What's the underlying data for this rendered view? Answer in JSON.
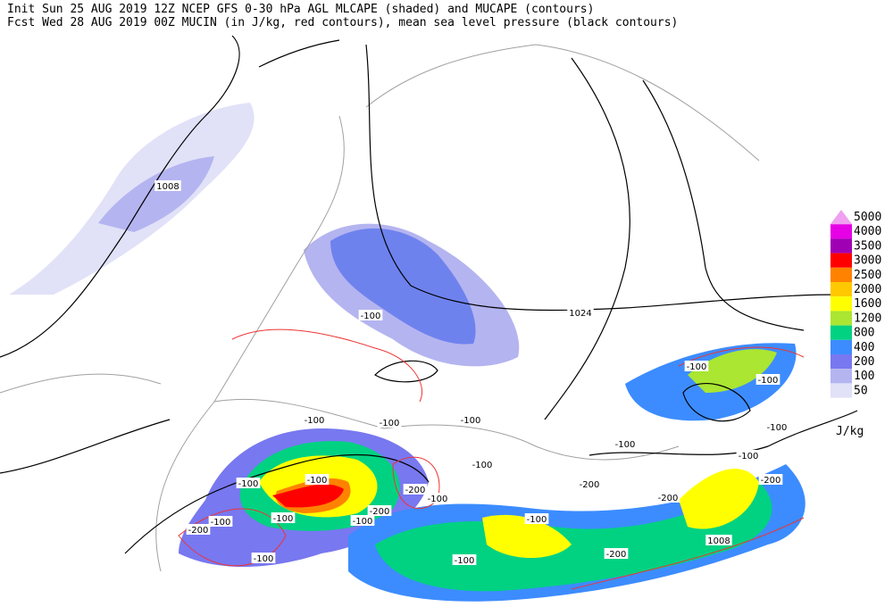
{
  "header": {
    "line1": "Init  Sun 25 AUG 2019 12Z  NCEP GFS 0-30 hPa AGL MLCAPE (shaded) and MUCAPE (contours)",
    "line2": "Fcst Wed 28 AUG 2019 00Z  MUCIN (in J/kg, red contours), mean sea level pressure (black contours)"
  },
  "legend": {
    "levels": [
      {
        "label": "5000",
        "color": "#f0a0f0"
      },
      {
        "label": "4000",
        "color": "#e600e6"
      },
      {
        "label": "3500",
        "color": "#a000b4"
      },
      {
        "label": "3000",
        "color": "#ff0000"
      },
      {
        "label": "2500",
        "color": "#ff8200"
      },
      {
        "label": "2000",
        "color": "#ffc800"
      },
      {
        "label": "1600",
        "color": "#ffff00"
      },
      {
        "label": "1200",
        "color": "#aae632"
      },
      {
        "label": "800",
        "color": "#00d282"
      },
      {
        "label": "400",
        "color": "#3c8cff"
      },
      {
        "label": "200",
        "color": "#7878f0"
      },
      {
        "label": "100",
        "color": "#b4b4f0"
      },
      {
        "label": "50",
        "color": "#e1e1f8"
      }
    ],
    "unit": "J/kg"
  },
  "contour_labels": [
    "1008",
    "1024",
    "1008",
    "-100",
    "-100",
    "-100",
    "-100",
    "-100",
    "-100",
    "-100",
    "-100",
    "-100",
    "-100",
    "-100",
    "-100",
    "-100",
    "-100",
    "-100",
    "-100",
    "-100",
    "-100",
    "-100",
    "-200",
    "-200",
    "-200",
    "-200",
    "-200",
    "-200",
    "-200"
  ]
}
